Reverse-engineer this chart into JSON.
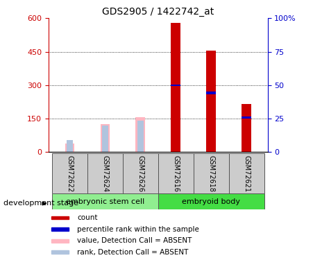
{
  "title": "GDS2905 / 1422742_at",
  "samples": [
    "GSM72622",
    "GSM72624",
    "GSM72626",
    "GSM72616",
    "GSM72618",
    "GSM72621"
  ],
  "absent_value": [
    40,
    125,
    155,
    0,
    0,
    0
  ],
  "absent_rank": [
    55,
    120,
    140,
    0,
    0,
    0
  ],
  "present_count": [
    0,
    0,
    0,
    580,
    455,
    215
  ],
  "present_rank": [
    0,
    0,
    0,
    300,
    265,
    155
  ],
  "present_rank_seg": [
    0,
    0,
    0,
    8,
    12,
    8
  ],
  "ylim_left": [
    0,
    600
  ],
  "ylim_right": [
    0,
    100
  ],
  "yticks_left": [
    0,
    150,
    300,
    450,
    600
  ],
  "yticks_right": [
    0,
    25,
    50,
    75,
    100
  ],
  "bar_width": 0.18,
  "absent_value_color": "#FFB6C1",
  "absent_rank_color": "#B0C4DE",
  "present_count_color": "#CC0000",
  "present_rank_color": "#0000CC",
  "left_axis_color": "#CC0000",
  "right_axis_color": "#0000CC",
  "sample_area_color": "#CCCCCC",
  "group1_color": "#90EE90",
  "group2_color": "#44DD44",
  "group_data": [
    {
      "name": "embryonic stem cell",
      "start": 0,
      "end": 2
    },
    {
      "name": "embryoid body",
      "start": 3,
      "end": 5
    }
  ],
  "legend_items": [
    {
      "color": "#CC0000",
      "label": "count"
    },
    {
      "color": "#0000CC",
      "label": "percentile rank within the sample"
    },
    {
      "color": "#FFB6C1",
      "label": "value, Detection Call = ABSENT"
    },
    {
      "color": "#B0C4DE",
      "label": "rank, Detection Call = ABSENT"
    }
  ]
}
